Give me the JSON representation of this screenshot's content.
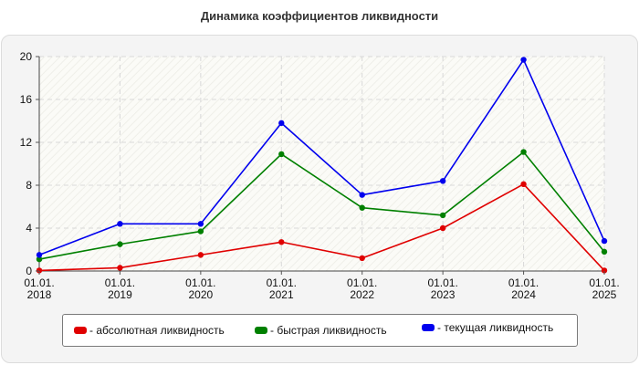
{
  "chart_data": {
    "type": "line",
    "title": "Динамика коэффициентов ликвидности",
    "x": [
      "01.01.\n2018",
      "01.01.\n2019",
      "01.01.\n2020",
      "01.01.\n2021",
      "01.01.\n2022",
      "01.01.\n2023",
      "01.01.\n2024",
      "01.01.\n2025"
    ],
    "ylim": [
      0,
      20
    ],
    "yticks": [
      0,
      4,
      8,
      12,
      16,
      20
    ],
    "grid": true,
    "legend_position": "bottom",
    "series": [
      {
        "name": "- абсолютная ликвидность",
        "color": "#e00000",
        "values": [
          0.05,
          0.3,
          1.5,
          2.7,
          1.2,
          4.0,
          8.1,
          0.05
        ]
      },
      {
        "name": "- быстрая ликвидность",
        "color": "#008000",
        "values": [
          1.1,
          2.5,
          3.7,
          10.9,
          5.9,
          5.2,
          11.1,
          1.8
        ]
      },
      {
        "name": "- текущая ликвидность",
        "color": "#0000ee",
        "values": [
          1.5,
          4.4,
          4.4,
          13.8,
          7.1,
          8.4,
          19.7,
          2.8
        ]
      }
    ]
  }
}
